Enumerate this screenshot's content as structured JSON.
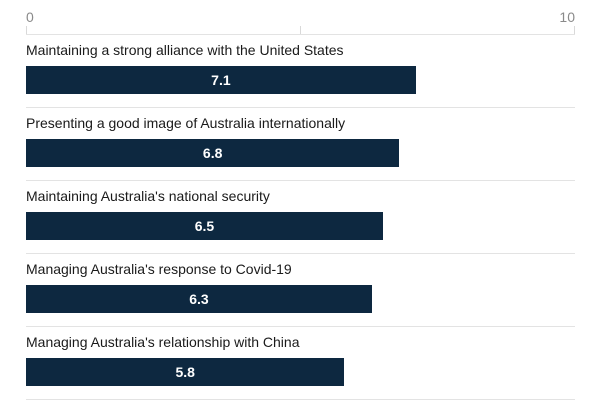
{
  "chart_data": {
    "type": "bar",
    "orientation": "horizontal",
    "categories": [
      "Maintaining a strong alliance with the United States",
      "Presenting a good image of Australia internationally",
      "Maintaining Australia's national security",
      "Managing Australia's response to Covid-19",
      "Managing Australia's relationship with China"
    ],
    "values": [
      7.1,
      6.8,
      6.5,
      6.3,
      5.8
    ],
    "value_labels": [
      "7.1",
      "6.8",
      "6.5",
      "6.3",
      "5.8"
    ],
    "xlim": [
      0,
      10
    ],
    "x_ticks": [
      "0",
      "10"
    ],
    "grid": true,
    "bar_color": "#0d2840"
  }
}
